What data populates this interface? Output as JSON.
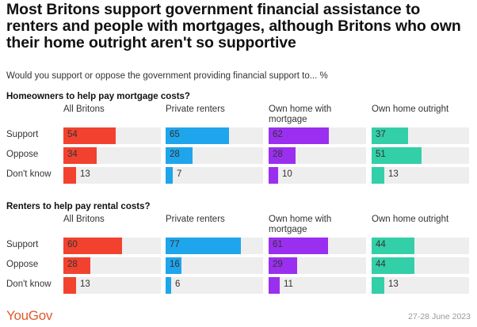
{
  "title": "Most Britons support government financial assistance to renters and people with mortgages, although Britons who own their home outright aren't so supportive",
  "subtitle": "Would you support or oppose the government providing financial support to... %",
  "footer": {
    "logo": "YouGov",
    "date": "27-28 June 2023"
  },
  "chart_data": [
    {
      "type": "bar",
      "title": "Homeowners to help pay mortgage costs?",
      "categories": [
        "Support",
        "Oppose",
        "Don't know"
      ],
      "series": [
        {
          "name": "All Britons",
          "color": "#f2422f",
          "values": [
            54,
            34,
            13
          ]
        },
        {
          "name": "Private renters",
          "color": "#1fa5ec",
          "values": [
            65,
            28,
            7
          ]
        },
        {
          "name": "Own home with mortgage",
          "color": "#9b2ff0",
          "values": [
            62,
            28,
            10
          ]
        },
        {
          "name": "Own home outright",
          "color": "#33cfa8",
          "values": [
            37,
            51,
            13
          ]
        }
      ],
      "ylim": [
        0,
        100
      ]
    },
    {
      "type": "bar",
      "title": "Renters to help pay rental costs?",
      "categories": [
        "Support",
        "Oppose",
        "Don't know"
      ],
      "series": [
        {
          "name": "All Britons",
          "color": "#f2422f",
          "values": [
            60,
            28,
            13
          ]
        },
        {
          "name": "Private renters",
          "color": "#1fa5ec",
          "values": [
            77,
            16,
            6
          ]
        },
        {
          "name": "Own home with mortgage",
          "color": "#9b2ff0",
          "values": [
            61,
            29,
            11
          ]
        },
        {
          "name": "Own home outright",
          "color": "#33cfa8",
          "values": [
            44,
            44,
            13
          ]
        }
      ],
      "ylim": [
        0,
        100
      ]
    }
  ]
}
